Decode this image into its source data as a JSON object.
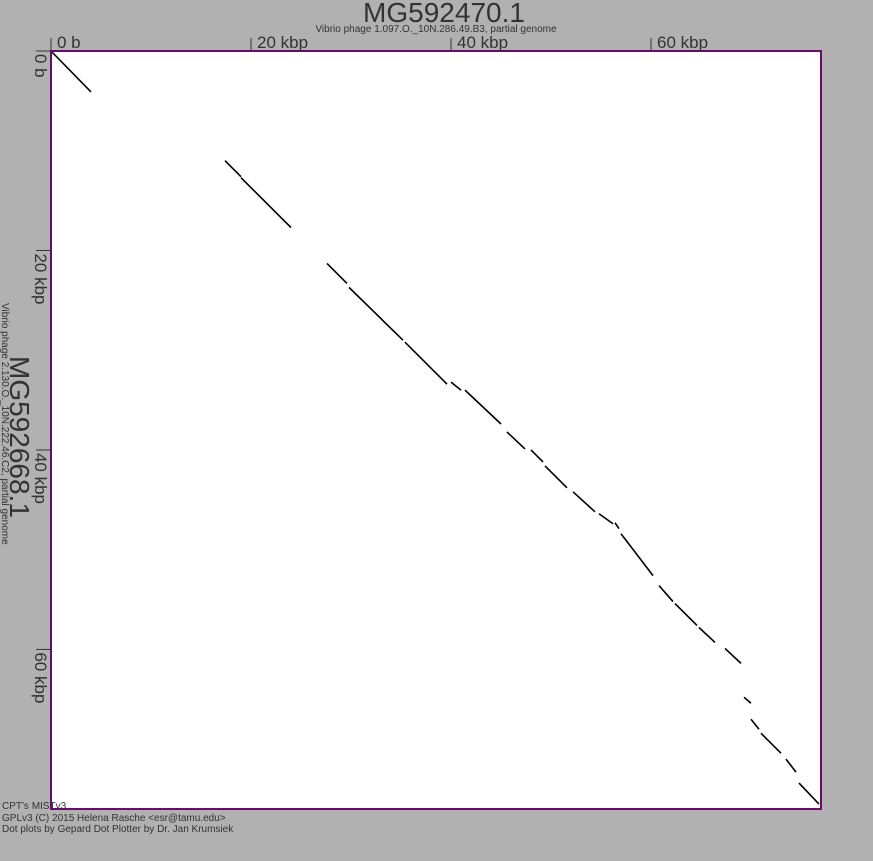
{
  "colors": {
    "background": "#b1b1b1",
    "plot_fill": "#ffffff",
    "frame": "#6b0a6b",
    "dots": "#000000",
    "text": "#333333"
  },
  "chart_data": {
    "type": "scatter",
    "title": "MG592470.1",
    "subtitle": "Vibrio phage 1.097.O._10N.286.49.B3, partial genome",
    "x_title": "MG592470.1",
    "x_subtitle": "Vibrio phage 1.097.O._10N.286.49.B3, partial genome",
    "y_title": "MG592668.1",
    "y_subtitle": "Vibrio phage 2.130.O._10N.222.46.C2, partial genome",
    "x_ticks": [
      {
        "value": 0,
        "label": "0 b"
      },
      {
        "value": 20000,
        "label": "20 kbp"
      },
      {
        "value": 40000,
        "label": "40 kbp"
      },
      {
        "value": 60000,
        "label": "60 kbp"
      }
    ],
    "y_ticks": [
      {
        "value": 0,
        "label": "0 b"
      },
      {
        "value": 20000,
        "label": "20 kbp"
      },
      {
        "value": 40000,
        "label": "40 kbp"
      },
      {
        "value": 60000,
        "label": "60 kbp"
      }
    ],
    "xlim": [
      0,
      77000
    ],
    "ylim": [
      0,
      76000
    ],
    "grid": false,
    "series": [
      {
        "segments": [
          [
            [
              0,
              0
            ],
            [
              4000,
              4100
            ]
          ],
          [
            [
              17400,
              11000
            ],
            [
              19000,
              12600
            ]
          ],
          [
            [
              19000,
              12700
            ],
            [
              24000,
              17700
            ]
          ],
          [
            [
              27600,
              21300
            ],
            [
              29600,
              23300
            ]
          ],
          [
            [
              29800,
              23700
            ],
            [
              35200,
              29000
            ]
          ],
          [
            [
              35400,
              29200
            ],
            [
              39600,
              33400
            ]
          ],
          [
            [
              40000,
              33200
            ],
            [
              41000,
              34000
            ]
          ],
          [
            [
              41400,
              34000
            ],
            [
              45000,
              37400
            ]
          ],
          [
            [
              45600,
              38200
            ],
            [
              47400,
              39900
            ]
          ],
          [
            [
              48000,
              40000
            ],
            [
              49200,
              41200
            ]
          ],
          [
            [
              49400,
              41600
            ],
            [
              51600,
              43800
            ]
          ],
          [
            [
              52200,
              44200
            ],
            [
              54400,
              46200
            ]
          ],
          [
            [
              54800,
              46400
            ],
            [
              56200,
              47400
            ]
          ],
          [
            [
              56400,
              47300
            ],
            [
              56800,
              47900
            ]
          ],
          [
            [
              57000,
              48400
            ],
            [
              60200,
              52600
            ]
          ],
          [
            [
              60800,
              53600
            ],
            [
              62200,
              55200
            ]
          ],
          [
            [
              62400,
              55400
            ],
            [
              64600,
              57600
            ]
          ],
          [
            [
              64800,
              57800
            ],
            [
              66400,
              59300
            ]
          ],
          [
            [
              67400,
              59900
            ],
            [
              69000,
              61400
            ]
          ],
          [
            [
              69300,
              64800
            ],
            [
              70000,
              65400
            ]
          ],
          [
            [
              70000,
              67000
            ],
            [
              70800,
              68000
            ]
          ],
          [
            [
              71000,
              68400
            ],
            [
              73000,
              70400
            ]
          ],
          [
            [
              73500,
              71000
            ],
            [
              74500,
              72300
            ]
          ],
          [
            [
              74800,
              73400
            ],
            [
              76800,
              75500
            ]
          ]
        ]
      }
    ]
  },
  "footer": {
    "line1": "CPT's MISTv3",
    "line2": "GPLv3 (C) 2015 Helena Rasche <esr@tamu.edu>",
    "line3": "Dot plots by Gepard Dot Plotter by Dr. Jan Krumsiek"
  }
}
